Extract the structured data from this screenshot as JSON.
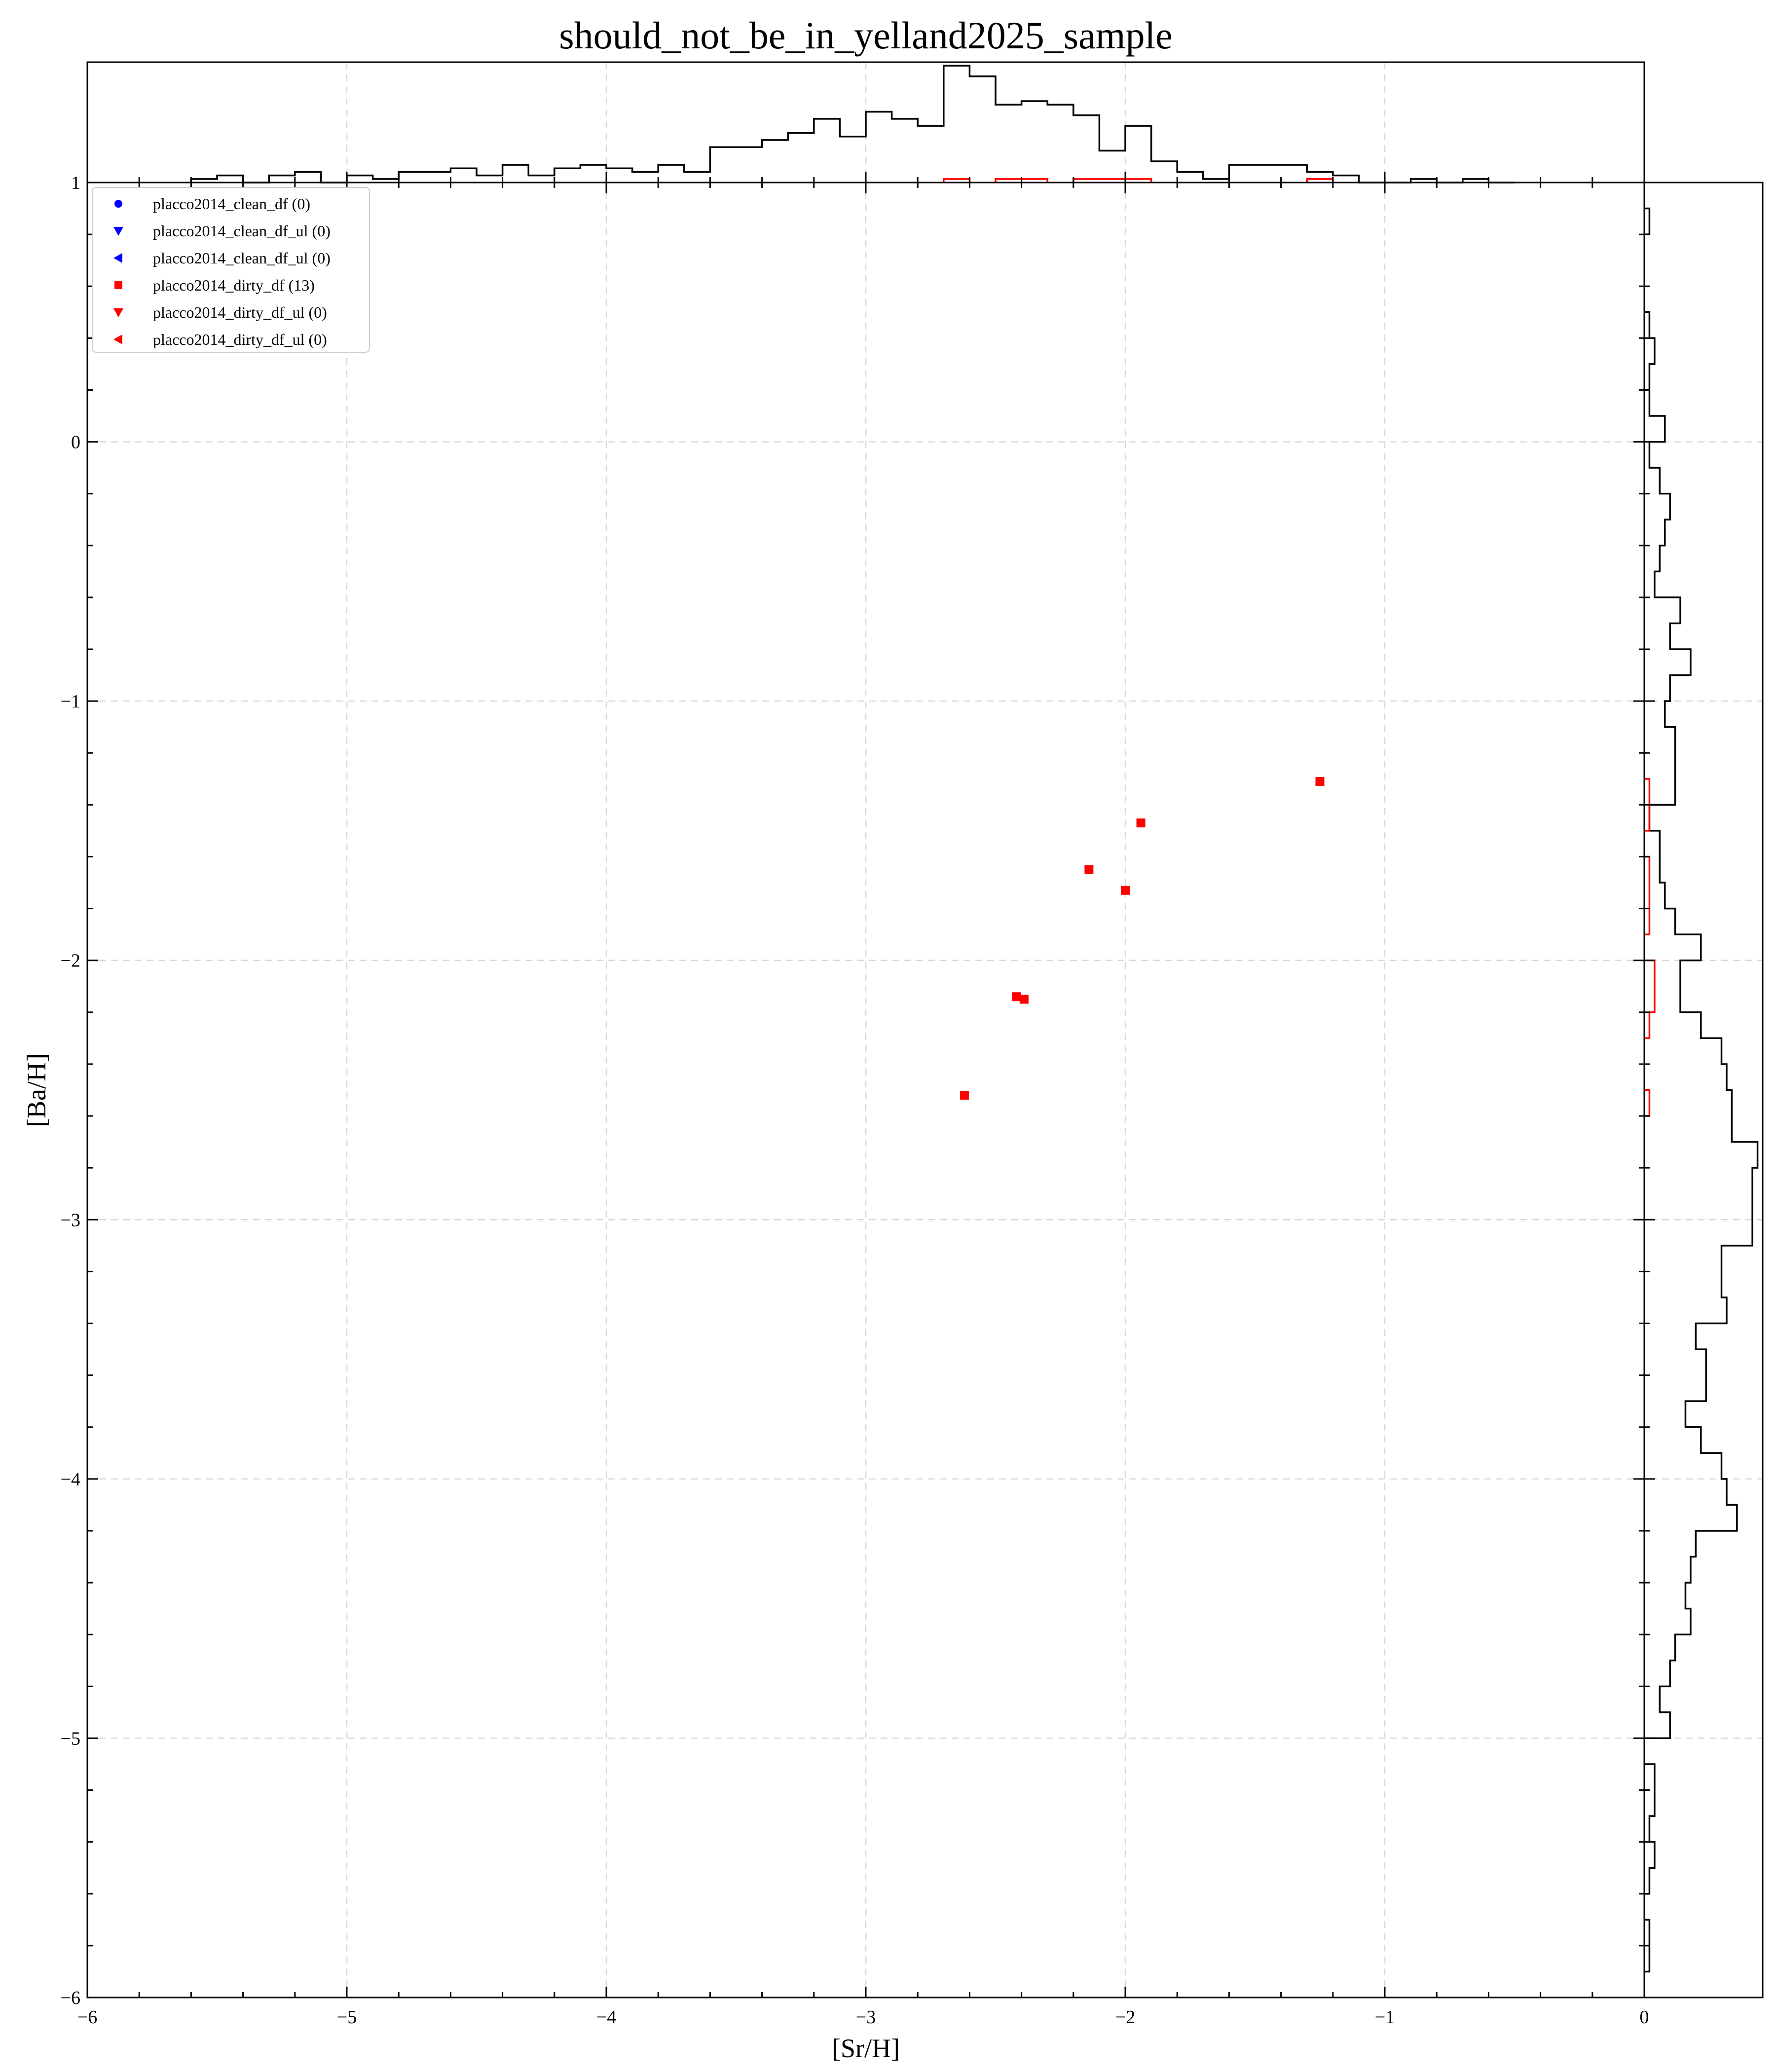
{
  "chart_data": {
    "type": "scatter",
    "title": "should_not_be_in_yelland2025_sample",
    "xlabel": "[Sr/H]",
    "ylabel": "[Ba/H]",
    "xlim": [
      -6,
      0
    ],
    "ylim": [
      -6,
      1
    ],
    "xticks": [
      "−6",
      "−5",
      "−4",
      "−3",
      "−2",
      "−1",
      "0"
    ],
    "yticks": [
      "−6",
      "−5",
      "−4",
      "−3",
      "−2",
      "−1",
      "0",
      "1"
    ],
    "grid": true,
    "legend_position": "top-left",
    "legend": [
      {
        "label": "placco2014_clean_df (0)",
        "color": "#0000ff",
        "marker": "circle"
      },
      {
        "label": "placco2014_clean_df_ul (0)",
        "color": "#0000ff",
        "marker": "triangle-down"
      },
      {
        "label": "placco2014_clean_df_ul (0)",
        "color": "#0000ff",
        "marker": "triangle-left"
      },
      {
        "label": "placco2014_dirty_df (13)",
        "color": "#ff0000",
        "marker": "square"
      },
      {
        "label": "placco2014_dirty_df_ul (0)",
        "color": "#ff0000",
        "marker": "triangle-down"
      },
      {
        "label": "placco2014_dirty_df_ul (0)",
        "color": "#ff0000",
        "marker": "triangle-left"
      }
    ],
    "series": [
      {
        "color": "#ff0000",
        "marker": "square",
        "points": [
          {
            "x": -1.25,
            "y": -1.31
          },
          {
            "x": -1.94,
            "y": -1.47
          },
          {
            "x": -2.14,
            "y": -1.65
          },
          {
            "x": -2.0,
            "y": -1.73
          },
          {
            "x": -2.42,
            "y": -2.14
          },
          {
            "x": -2.39,
            "y": -2.15
          },
          {
            "x": -2.62,
            "y": -2.52
          }
        ]
      }
    ],
    "top_histogram": {
      "bin_width": 0.1,
      "black": [
        {
          "x0": -5.6,
          "c": 0.02
        },
        {
          "x0": -5.5,
          "c": 0.04
        },
        {
          "x0": -5.4,
          "c": 0.0
        },
        {
          "x0": -5.3,
          "c": 0.04
        },
        {
          "x0": -5.2,
          "c": 0.06
        },
        {
          "x0": -5.1,
          "c": 0.0
        },
        {
          "x0": -5.0,
          "c": 0.04
        },
        {
          "x0": -4.9,
          "c": 0.02
        },
        {
          "x0": -4.8,
          "c": 0.06
        },
        {
          "x0": -4.7,
          "c": 0.06
        },
        {
          "x0": -4.6,
          "c": 0.08
        },
        {
          "x0": -4.5,
          "c": 0.04
        },
        {
          "x0": -4.4,
          "c": 0.1
        },
        {
          "x0": -4.3,
          "c": 0.04
        },
        {
          "x0": -4.2,
          "c": 0.08
        },
        {
          "x0": -4.1,
          "c": 0.1
        },
        {
          "x0": -4.0,
          "c": 0.08
        },
        {
          "x0": -3.9,
          "c": 0.06
        },
        {
          "x0": -3.8,
          "c": 0.1
        },
        {
          "x0": -3.7,
          "c": 0.06
        },
        {
          "x0": -3.6,
          "c": 0.2
        },
        {
          "x0": -3.5,
          "c": 0.2
        },
        {
          "x0": -3.4,
          "c": 0.24
        },
        {
          "x0": -3.3,
          "c": 0.28
        },
        {
          "x0": -3.2,
          "c": 0.36
        },
        {
          "x0": -3.1,
          "c": 0.26
        },
        {
          "x0": -3.0,
          "c": 0.4
        },
        {
          "x0": -2.9,
          "c": 0.36
        },
        {
          "x0": -2.8,
          "c": 0.32
        },
        {
          "x0": -2.7,
          "c": 0.66
        },
        {
          "x0": -2.6,
          "c": 0.6
        },
        {
          "x0": -2.5,
          "c": 0.44
        },
        {
          "x0": -2.4,
          "c": 0.46
        },
        {
          "x0": -2.3,
          "c": 0.44
        },
        {
          "x0": -2.2,
          "c": 0.38
        },
        {
          "x0": -2.1,
          "c": 0.18
        },
        {
          "x0": -2.0,
          "c": 0.32
        },
        {
          "x0": -1.9,
          "c": 0.12
        },
        {
          "x0": -1.8,
          "c": 0.06
        },
        {
          "x0": -1.7,
          "c": 0.02
        },
        {
          "x0": -1.6,
          "c": 0.1
        },
        {
          "x0": -1.5,
          "c": 0.1
        },
        {
          "x0": -1.4,
          "c": 0.1
        },
        {
          "x0": -1.3,
          "c": 0.06
        },
        {
          "x0": -1.2,
          "c": 0.04
        },
        {
          "x0": -1.1,
          "c": 0.0
        },
        {
          "x0": -1.0,
          "c": 0.0
        },
        {
          "x0": -0.9,
          "c": 0.02
        },
        {
          "x0": -0.8,
          "c": 0.0
        },
        {
          "x0": -0.7,
          "c": 0.02
        },
        {
          "x0": -0.6,
          "c": 0.0
        }
      ],
      "red": [
        {
          "x0": -2.7,
          "c": 0.02
        },
        {
          "x0": -2.5,
          "c": 0.02
        },
        {
          "x0": -2.4,
          "c": 0.02
        },
        {
          "x0": -2.2,
          "c": 0.02
        },
        {
          "x0": -2.1,
          "c": 0.02
        },
        {
          "x0": -2.0,
          "c": 0.02
        },
        {
          "x0": -1.3,
          "c": 0.02
        }
      ]
    },
    "right_histogram": {
      "bin_width": 0.1,
      "black": [
        {
          "y0": 0.8,
          "c": 0.02
        },
        {
          "y0": 0.4,
          "c": 0.02
        },
        {
          "y0": 0.3,
          "c": 0.04
        },
        {
          "y0": 0.2,
          "c": 0.02
        },
        {
          "y0": 0.1,
          "c": 0.02
        },
        {
          "y0": 0.0,
          "c": 0.08
        },
        {
          "y0": -0.1,
          "c": 0.02
        },
        {
          "y0": -0.2,
          "c": 0.06
        },
        {
          "y0": -0.3,
          "c": 0.1
        },
        {
          "y0": -0.4,
          "c": 0.08
        },
        {
          "y0": -0.5,
          "c": 0.06
        },
        {
          "y0": -0.6,
          "c": 0.04
        },
        {
          "y0": -0.7,
          "c": 0.14
        },
        {
          "y0": -0.8,
          "c": 0.1
        },
        {
          "y0": -0.9,
          "c": 0.18
        },
        {
          "y0": -1.0,
          "c": 0.1
        },
        {
          "y0": -1.1,
          "c": 0.08
        },
        {
          "y0": -1.2,
          "c": 0.12
        },
        {
          "y0": -1.3,
          "c": 0.12
        },
        {
          "y0": -1.4,
          "c": 0.12
        },
        {
          "y0": -1.5,
          "c": 0.02
        },
        {
          "y0": -1.6,
          "c": 0.06
        },
        {
          "y0": -1.7,
          "c": 0.06
        },
        {
          "y0": -1.8,
          "c": 0.08
        },
        {
          "y0": -1.9,
          "c": 0.12
        },
        {
          "y0": -2.0,
          "c": 0.22
        },
        {
          "y0": -2.1,
          "c": 0.14
        },
        {
          "y0": -2.2,
          "c": 0.14
        },
        {
          "y0": -2.3,
          "c": 0.22
        },
        {
          "y0": -2.4,
          "c": 0.3
        },
        {
          "y0": -2.5,
          "c": 0.32
        },
        {
          "y0": -2.6,
          "c": 0.34
        },
        {
          "y0": -2.7,
          "c": 0.34
        },
        {
          "y0": -2.8,
          "c": 0.44
        },
        {
          "y0": -2.9,
          "c": 0.42
        },
        {
          "y0": -3.0,
          "c": 0.42
        },
        {
          "y0": -3.1,
          "c": 0.42
        },
        {
          "y0": -3.2,
          "c": 0.3
        },
        {
          "y0": -3.3,
          "c": 0.3
        },
        {
          "y0": -3.4,
          "c": 0.32
        },
        {
          "y0": -3.5,
          "c": 0.2
        },
        {
          "y0": -3.6,
          "c": 0.24
        },
        {
          "y0": -3.7,
          "c": 0.24
        },
        {
          "y0": -3.8,
          "c": 0.16
        },
        {
          "y0": -3.9,
          "c": 0.22
        },
        {
          "y0": -4.0,
          "c": 0.3
        },
        {
          "y0": -4.1,
          "c": 0.32
        },
        {
          "y0": -4.2,
          "c": 0.36
        },
        {
          "y0": -4.3,
          "c": 0.2
        },
        {
          "y0": -4.4,
          "c": 0.18
        },
        {
          "y0": -4.5,
          "c": 0.16
        },
        {
          "y0": -4.6,
          "c": 0.18
        },
        {
          "y0": -4.7,
          "c": 0.12
        },
        {
          "y0": -4.8,
          "c": 0.1
        },
        {
          "y0": -4.9,
          "c": 0.06
        },
        {
          "y0": -5.0,
          "c": 0.1
        },
        {
          "y0": -5.2,
          "c": 0.04
        },
        {
          "y0": -5.3,
          "c": 0.04
        },
        {
          "y0": -5.4,
          "c": 0.02
        },
        {
          "y0": -5.5,
          "c": 0.04
        },
        {
          "y0": -5.6,
          "c": 0.02
        },
        {
          "y0": -5.8,
          "c": 0.02
        },
        {
          "y0": -5.9,
          "c": 0.02
        }
      ],
      "red": [
        {
          "y0": -1.4,
          "c": 0.02
        },
        {
          "y0": -1.5,
          "c": 0.02
        },
        {
          "y0": -1.7,
          "c": 0.02
        },
        {
          "y0": -1.8,
          "c": 0.02
        },
        {
          "y0": -1.9,
          "c": 0.02
        },
        {
          "y0": -2.1,
          "c": 0.04
        },
        {
          "y0": -2.2,
          "c": 0.04
        },
        {
          "y0": -2.3,
          "c": 0.02
        },
        {
          "y0": -2.6,
          "c": 0.02
        }
      ]
    }
  }
}
